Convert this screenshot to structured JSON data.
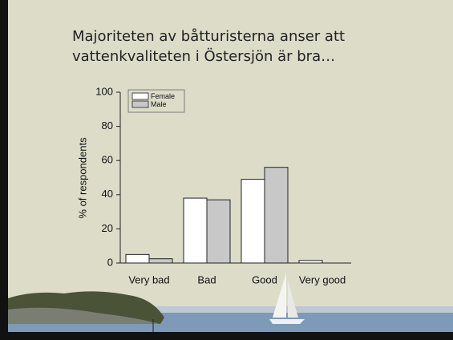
{
  "chart_data": {
    "type": "bar",
    "title": [
      "Majoriteten av båtturisterna anser att",
      "vattenkvaliteten i Östersjön är bra…"
    ],
    "ylabel": "% of respondents",
    "categories": [
      "Very bad",
      "Bad",
      "Good",
      "Very good"
    ],
    "series": [
      {
        "name": "Female",
        "color": "#ffffff",
        "values": [
          5,
          38,
          49,
          1.5
        ]
      },
      {
        "name": "Male",
        "color": "#c8c8c8",
        "values": [
          2.5,
          37,
          56,
          0
        ]
      }
    ],
    "ylim": [
      0,
      100
    ],
    "yticks": [
      0,
      20,
      40,
      60,
      80,
      100
    ],
    "legend": "upper left"
  }
}
